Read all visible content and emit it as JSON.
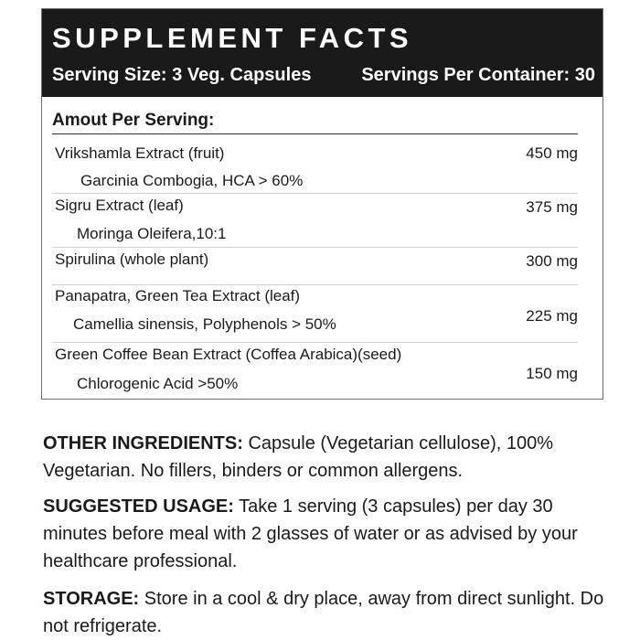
{
  "facts": {
    "title": "SUPPLEMENT FACTS",
    "serving_size": "Serving Size: 3 Veg. Capsules",
    "servings_per_container": "Servings Per Container: 30",
    "amount_heading": "Amout Per Serving:",
    "ingredients": [
      {
        "name": "Vrikshamla Extract (fruit)",
        "sub": "Garcinia Combogia, HCA > 60%",
        "amount": "450 mg"
      },
      {
        "name": "Sigru Extract (leaf)",
        "sub": "Moringa Oleifera,10:1",
        "amount": "375 mg"
      },
      {
        "name": "Spirulina (whole plant)",
        "sub": "",
        "amount": "300 mg"
      },
      {
        "name": "Panapatra, Green Tea Extract (leaf)",
        "sub": "Camellia sinensis, Polyphenols > 50%",
        "amount": "225 mg"
      },
      {
        "name": "Green Coffee Bean Extract (Coffea Arabica)(seed)",
        "sub": "Chlorogenic Acid >50%",
        "amount": "150 mg"
      }
    ]
  },
  "other_ingredients": {
    "label": "OTHER INGREDIENTS:",
    "text": " Capsule (Vegetarian cellulose), 100% Vegetarian. No fillers, binders or common allergens."
  },
  "suggested_usage": {
    "label": "SUGGESTED USAGE:",
    "text": " Take 1 serving (3 capsules) per day 30 minutes before meal with 2 glasses of water or as advised by your healthcare professional."
  },
  "storage": {
    "label": "STORAGE:",
    "text": " Store in a cool & dry place, away from direct sunlight. Do not refrigerate."
  }
}
